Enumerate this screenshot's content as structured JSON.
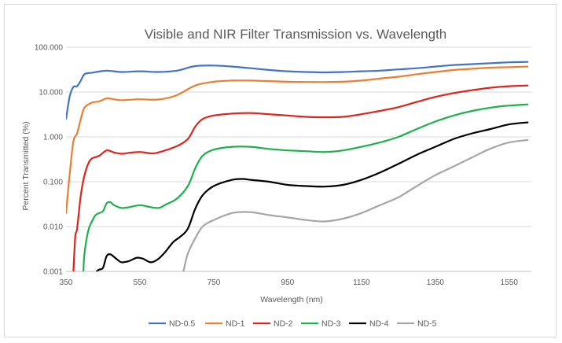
{
  "chart_data": {
    "type": "line",
    "title": "Visible and NIR Filter Transmission vs. Wavelength",
    "xlabel": "Wavelength (nm)",
    "ylabel": "Percent Transmitted (%)",
    "y_scale": "log",
    "xlim": [
      350,
      1610
    ],
    "ylim": [
      0.001,
      100
    ],
    "x_ticks": [
      350,
      550,
      750,
      950,
      1150,
      1350,
      1550
    ],
    "y_ticks": [
      0.001,
      0.01,
      0.1,
      1,
      10,
      100
    ],
    "x_tick_labels": [
      "350",
      "550",
      "750",
      "950",
      "1150",
      "1350",
      "1550"
    ],
    "y_tick_labels": [
      "0.001",
      "0.010",
      "0.100",
      "1.000",
      "10.000",
      "100.000"
    ],
    "grid": "horizontal",
    "legend_position": "bottom",
    "series": [
      {
        "name": "ND-0.5",
        "color": "#4472C4",
        "x": [
          350,
          360,
          370,
          380,
          390,
          400,
          420,
          460,
          500,
          550,
          600,
          650,
          700,
          750,
          800,
          850,
          900,
          950,
          1000,
          1050,
          1100,
          1150,
          1200,
          1250,
          1300,
          1350,
          1400,
          1450,
          1500,
          1550,
          1600
        ],
        "y": [
          2.5,
          8,
          13,
          13.5,
          18,
          25,
          27,
          30,
          28,
          29,
          28,
          30,
          38,
          39,
          37,
          34,
          31,
          29,
          28,
          27.5,
          28,
          29,
          30,
          32,
          34,
          37,
          40,
          42,
          44,
          46,
          47
        ]
      },
      {
        "name": "ND-1",
        "color": "#ED7D31",
        "x": [
          350,
          360,
          370,
          380,
          390,
          400,
          420,
          440,
          460,
          480,
          500,
          550,
          600,
          650,
          700,
          750,
          800,
          850,
          900,
          950,
          1000,
          1050,
          1100,
          1150,
          1200,
          1250,
          1300,
          1350,
          1400,
          1450,
          1500,
          1550,
          1600
        ],
        "y": [
          0.02,
          0.15,
          0.8,
          1.2,
          2.5,
          4.5,
          5.8,
          6.2,
          7.2,
          6.9,
          6.6,
          6.9,
          6.8,
          8.5,
          14,
          17,
          18,
          18,
          17.5,
          17,
          16.8,
          16.7,
          17,
          18,
          20,
          22,
          25,
          28,
          31,
          33,
          35,
          36,
          37
        ]
      },
      {
        "name": "ND-2",
        "color": "#E0231C",
        "x": [
          370,
          375,
          380,
          390,
          400,
          410,
          420,
          440,
          460,
          480,
          500,
          520,
          550,
          580,
          600,
          650,
          680,
          700,
          720,
          750,
          800,
          850,
          900,
          950,
          1000,
          1050,
          1100,
          1150,
          1200,
          1250,
          1300,
          1350,
          1400,
          1450,
          1500,
          1550,
          1600
        ],
        "y": [
          0.001,
          0.006,
          0.009,
          0.05,
          0.14,
          0.25,
          0.33,
          0.38,
          0.5,
          0.45,
          0.42,
          0.44,
          0.46,
          0.43,
          0.45,
          0.62,
          0.9,
          1.7,
          2.5,
          3.0,
          3.3,
          3.4,
          3.2,
          3.0,
          2.8,
          2.75,
          2.8,
          3.2,
          3.8,
          4.6,
          6,
          7.8,
          9.5,
          11,
          12.5,
          13.5,
          14
        ]
      },
      {
        "name": "ND-3",
        "color": "#1CB14C",
        "x": [
          397,
          400,
          410,
          420,
          430,
          440,
          450,
          460,
          470,
          480,
          500,
          520,
          550,
          570,
          600,
          620,
          650,
          680,
          700,
          720,
          750,
          800,
          850,
          900,
          950,
          1000,
          1050,
          1100,
          1150,
          1200,
          1250,
          1300,
          1350,
          1400,
          1450,
          1500,
          1550,
          1600
        ],
        "y": [
          0.001,
          0.0025,
          0.008,
          0.013,
          0.018,
          0.02,
          0.022,
          0.033,
          0.035,
          0.03,
          0.026,
          0.027,
          0.03,
          0.028,
          0.026,
          0.031,
          0.042,
          0.08,
          0.2,
          0.38,
          0.52,
          0.6,
          0.6,
          0.54,
          0.5,
          0.48,
          0.46,
          0.5,
          0.6,
          0.75,
          1.0,
          1.5,
          2.2,
          3.0,
          3.8,
          4.5,
          5.0,
          5.3
        ]
      },
      {
        "name": "ND-4",
        "color": "#000000",
        "x": [
          433,
          440,
          450,
          460,
          470,
          480,
          490,
          500,
          520,
          540,
          550,
          560,
          580,
          600,
          620,
          640,
          660,
          680,
          700,
          720,
          750,
          800,
          830,
          850,
          900,
          950,
          1000,
          1050,
          1100,
          1150,
          1200,
          1250,
          1300,
          1350,
          1400,
          1450,
          1500,
          1550,
          1600
        ],
        "y": [
          0.001,
          0.0011,
          0.0012,
          0.0022,
          0.0024,
          0.0021,
          0.0018,
          0.0016,
          0.0017,
          0.002,
          0.002,
          0.0019,
          0.0016,
          0.0019,
          0.0028,
          0.0045,
          0.006,
          0.009,
          0.025,
          0.05,
          0.08,
          0.11,
          0.115,
          0.11,
          0.1,
          0.085,
          0.08,
          0.078,
          0.085,
          0.11,
          0.16,
          0.25,
          0.4,
          0.6,
          0.9,
          1.2,
          1.5,
          1.9,
          2.1
        ]
      },
      {
        "name": "ND-5",
        "color": "#A6A6A6",
        "x": [
          668,
          680,
          700,
          720,
          750,
          800,
          850,
          900,
          950,
          1000,
          1050,
          1100,
          1150,
          1200,
          1250,
          1300,
          1350,
          1400,
          1450,
          1500,
          1550,
          1600
        ],
        "y": [
          0.001,
          0.0025,
          0.0055,
          0.01,
          0.014,
          0.02,
          0.021,
          0.018,
          0.016,
          0.014,
          0.013,
          0.015,
          0.02,
          0.03,
          0.045,
          0.08,
          0.14,
          0.22,
          0.35,
          0.55,
          0.75,
          0.85
        ]
      }
    ]
  }
}
